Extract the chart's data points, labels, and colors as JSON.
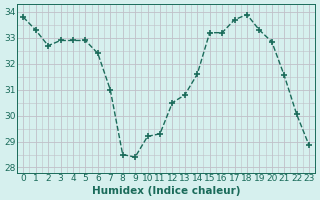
{
  "x": [
    0,
    1,
    2,
    3,
    4,
    5,
    6,
    7,
    8,
    9,
    10,
    11,
    12,
    13,
    14,
    15,
    16,
    17,
    18,
    19,
    20,
    21,
    22,
    23
  ],
  "y": [
    33.8,
    33.3,
    32.7,
    32.9,
    32.9,
    32.9,
    32.4,
    31.0,
    28.5,
    28.4,
    29.2,
    29.3,
    30.5,
    30.8,
    31.6,
    33.2,
    33.2,
    33.7,
    33.9,
    33.3,
    32.85,
    31.55,
    30.05,
    28.85
  ],
  "line_color": "#1a6b5a",
  "marker": "+",
  "markersize": 4,
  "markeredgewidth": 1.2,
  "bg_color": "#d6f0ee",
  "grid_color": "#c0c0c8",
  "xlabel": "Humidex (Indice chaleur)",
  "ylim": [
    27.8,
    34.3
  ],
  "yticks": [
    28,
    29,
    30,
    31,
    32,
    33,
    34
  ],
  "xticks": [
    0,
    1,
    2,
    3,
    4,
    5,
    6,
    7,
    8,
    9,
    10,
    11,
    12,
    13,
    14,
    15,
    16,
    17,
    18,
    19,
    20,
    21,
    22,
    23
  ],
  "linewidth": 1.0,
  "linestyle": "--",
  "tick_fontsize": 6.5,
  "label_fontsize": 7.5,
  "tick_color": "#1a6b5a"
}
